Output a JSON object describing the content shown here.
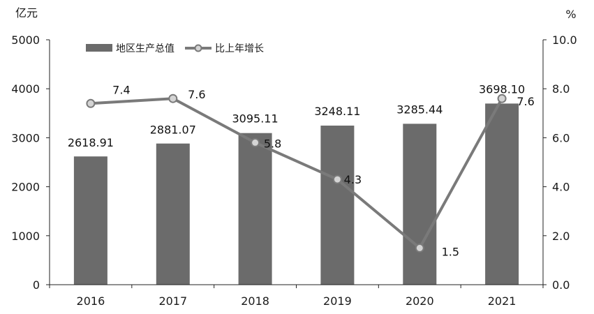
{
  "chart_data": {
    "type": "bar",
    "categories": [
      "2016",
      "2017",
      "2018",
      "2019",
      "2020",
      "2021"
    ],
    "series": [
      {
        "name": "地区生产总值",
        "type": "bar",
        "axis": "left",
        "values": [
          2618.91,
          2881.07,
          3095.11,
          3248.11,
          3285.44,
          3698.1
        ],
        "labels": [
          "2618.91",
          "2881.07",
          "3095.11",
          "3248.11",
          "3285.44",
          "3698.10"
        ],
        "color": "#6b6b6b"
      },
      {
        "name": "比上年增长",
        "type": "line",
        "axis": "right",
        "values": [
          7.4,
          7.6,
          5.8,
          4.3,
          1.5,
          7.6
        ],
        "labels": [
          "7.4",
          "7.6",
          "5.8",
          "4.3",
          "1.5",
          "7.6"
        ],
        "color": "#7a7a7a",
        "marker_fill": "#d4d4d4"
      }
    ],
    "y_left": {
      "unit": "亿元",
      "ylim": [
        0,
        5000
      ],
      "ticks": [
        "0",
        "1000",
        "2000",
        "3000",
        "4000",
        "5000"
      ]
    },
    "y_right": {
      "unit": "%",
      "ylim": [
        0,
        10
      ],
      "ticks": [
        "0.0",
        "2.0",
        "4.0",
        "6.0",
        "8.0",
        "10.0"
      ]
    },
    "grid": false,
    "legend_position": "top-left"
  }
}
